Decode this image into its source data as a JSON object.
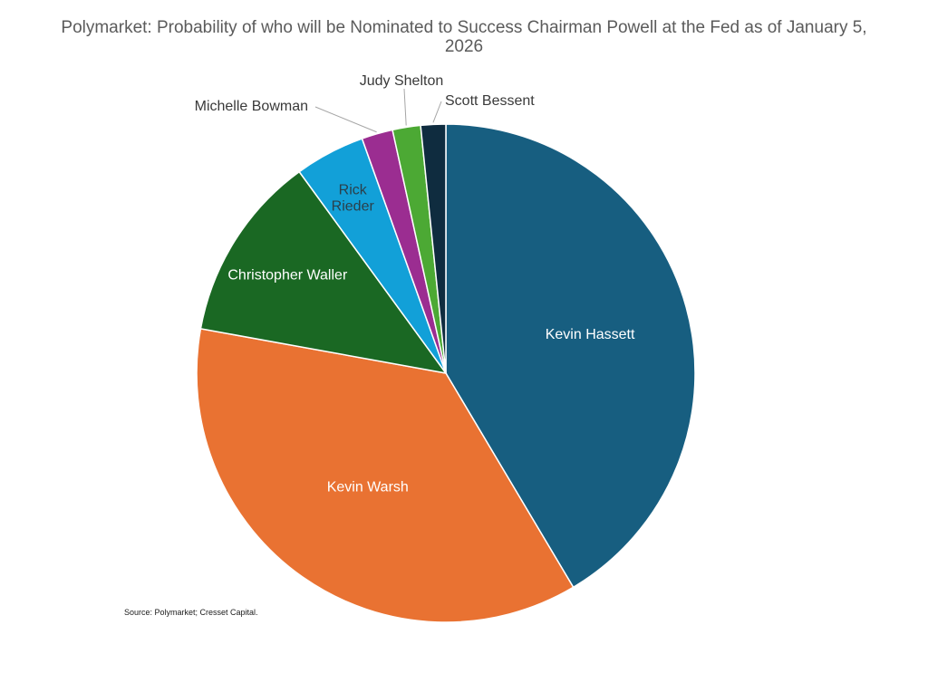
{
  "chart_data": {
    "type": "pie",
    "title": "Polymarket: Probability of who will be Nominated to Success Chairman Powell at the Fed as of January 5, 2026",
    "start_angle_deg": 0,
    "direction": "clockwise",
    "slices": [
      {
        "label": "Kevin Hassett",
        "value": 41,
        "color": "#175e80",
        "label_color": "#ffffff",
        "label_placement": "inside"
      },
      {
        "label": "Kevin Warsh",
        "value": 36,
        "color": "#e97232",
        "label_color": "#ffffff",
        "label_placement": "inside"
      },
      {
        "label": "Christopher Waller",
        "value": 12,
        "color": "#1a6823",
        "label_color": "#ffffff",
        "label_placement": "inside"
      },
      {
        "label": "Rick Rieder",
        "value": 4.5,
        "color": "#12a0d8",
        "label_color": "#2b3f4a",
        "label_placement": "inside",
        "label_lines": [
          "Rick",
          "Rieder"
        ]
      },
      {
        "label": "Michelle Bowman",
        "value": 2,
        "color": "#9b2d91",
        "label_color": "#3a3a3a",
        "label_placement": "outside"
      },
      {
        "label": "Judy Shelton",
        "value": 1.8,
        "color": "#4ca934",
        "label_color": "#3a3a3a",
        "label_placement": "outside"
      },
      {
        "label": "Scott Bessent",
        "value": 1.6,
        "color": "#0f2c3f",
        "label_color": "#3a3a3a",
        "label_placement": "outside"
      }
    ],
    "source": "Source: Polymarket; Cresset Capital."
  }
}
